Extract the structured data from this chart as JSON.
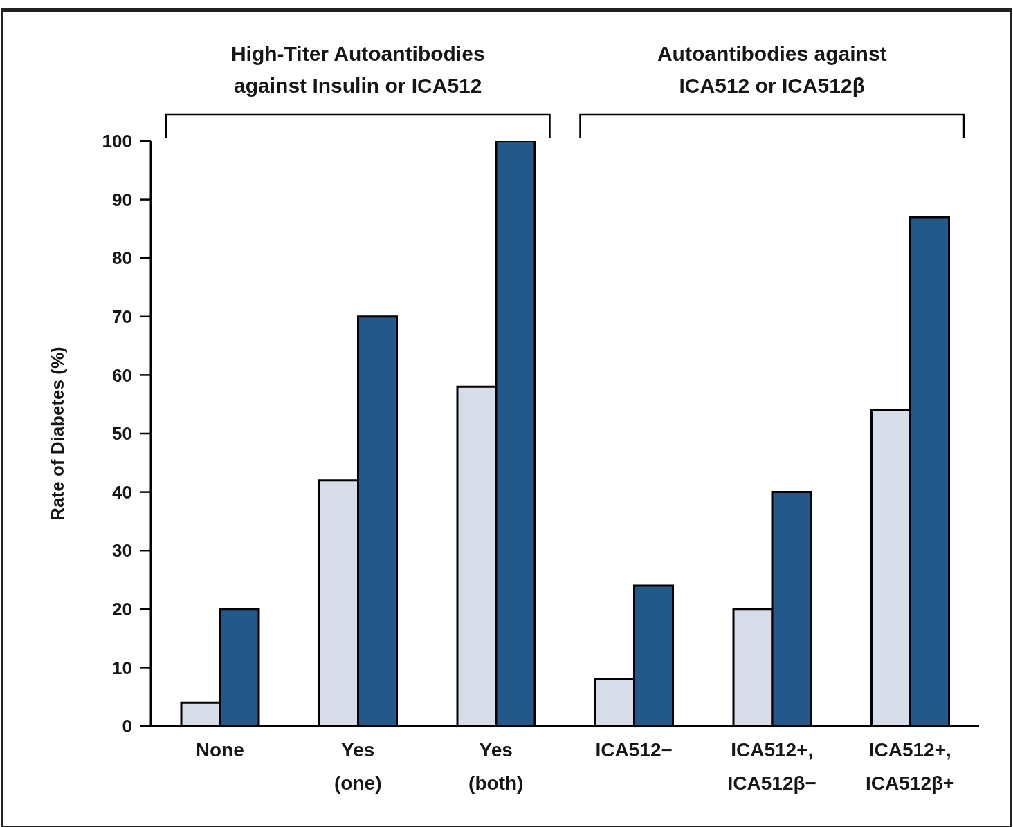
{
  "chart_data": {
    "type": "bar",
    "ylabel": "Rate of Diabetes (%)",
    "categories": [
      "None",
      "Yes\n(one)",
      "Yes\n(both)",
      "ICA512−",
      "ICA512+,\nICA512β−",
      "ICA512+,\nICA512β+"
    ],
    "series": [
      {
        "color": "#d6dde9",
        "values": [
          4,
          42,
          58,
          8,
          20,
          54
        ]
      },
      {
        "color": "#22598a",
        "values": [
          20,
          70,
          100,
          24,
          40,
          87
        ]
      }
    ],
    "ylim": [
      0,
      100
    ],
    "yticks": [
      0,
      10,
      20,
      30,
      40,
      50,
      60,
      70,
      80,
      90,
      100
    ],
    "annotations": [
      "High-Titer Autoantibodies\nagainst Insulin or ICA512",
      "Autoantibodies against\nICA512 or ICA512β"
    ]
  }
}
